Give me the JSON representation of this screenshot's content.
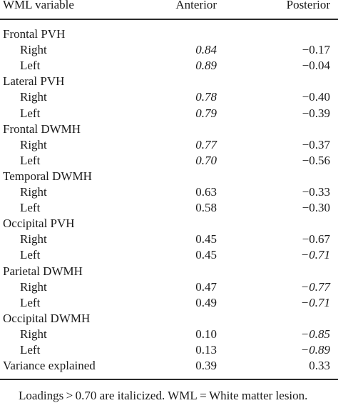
{
  "table": {
    "headers": {
      "variable": "WML variable",
      "anterior": "Anterior",
      "posterior": "Posterior"
    },
    "rows": [
      {
        "label": "Frontal PVH",
        "group": true
      },
      {
        "label": "Right",
        "anterior": "0.84",
        "posterior": "−0.17",
        "anterior_italic": true,
        "posterior_italic": false
      },
      {
        "label": "Left",
        "anterior": "0.89",
        "posterior": "−0.04",
        "anterior_italic": true,
        "posterior_italic": false
      },
      {
        "label": "Lateral PVH",
        "group": true
      },
      {
        "label": "Right",
        "anterior": "0.78",
        "posterior": "−0.40",
        "anterior_italic": true,
        "posterior_italic": false
      },
      {
        "label": "Left",
        "anterior": "0.79",
        "posterior": "−0.39",
        "anterior_italic": true,
        "posterior_italic": false
      },
      {
        "label": "Frontal DWMH",
        "group": true
      },
      {
        "label": "Right",
        "anterior": "0.77",
        "posterior": "−0.37",
        "anterior_italic": true,
        "posterior_italic": false
      },
      {
        "label": "Left",
        "anterior": "0.70",
        "posterior": "−0.56",
        "anterior_italic": true,
        "posterior_italic": false
      },
      {
        "label": "Temporal DWMH",
        "group": true
      },
      {
        "label": "Right",
        "anterior": "0.63",
        "posterior": "−0.33",
        "anterior_italic": false,
        "posterior_italic": false
      },
      {
        "label": "Left",
        "anterior": "0.58",
        "posterior": "−0.30",
        "anterior_italic": false,
        "posterior_italic": false
      },
      {
        "label": "Occipital PVH",
        "group": true
      },
      {
        "label": "Right",
        "anterior": "0.45",
        "posterior": "−0.67",
        "anterior_italic": false,
        "posterior_italic": false
      },
      {
        "label": "Left",
        "anterior": "0.45",
        "posterior": "−0.71",
        "anterior_italic": false,
        "posterior_italic": true
      },
      {
        "label": "Parietal DWMH",
        "group": true
      },
      {
        "label": "Right",
        "anterior": "0.47",
        "posterior": "−0.77",
        "anterior_italic": false,
        "posterior_italic": true
      },
      {
        "label": "Left",
        "anterior": "0.49",
        "posterior": "−0.71",
        "anterior_italic": false,
        "posterior_italic": true
      },
      {
        "label": "Occipital DWMH",
        "group": true
      },
      {
        "label": "Right",
        "anterior": "0.10",
        "posterior": "−0.85",
        "anterior_italic": false,
        "posterior_italic": true
      },
      {
        "label": "Left",
        "anterior": "0.13",
        "posterior": "−0.89",
        "anterior_italic": false,
        "posterior_italic": true
      },
      {
        "label": "Variance explained",
        "anterior": "0.39",
        "posterior": "0.33",
        "anterior_italic": false,
        "posterior_italic": false
      }
    ],
    "footnote": "Loadings > 0.70 are italicized. WML = White matter lesion."
  }
}
